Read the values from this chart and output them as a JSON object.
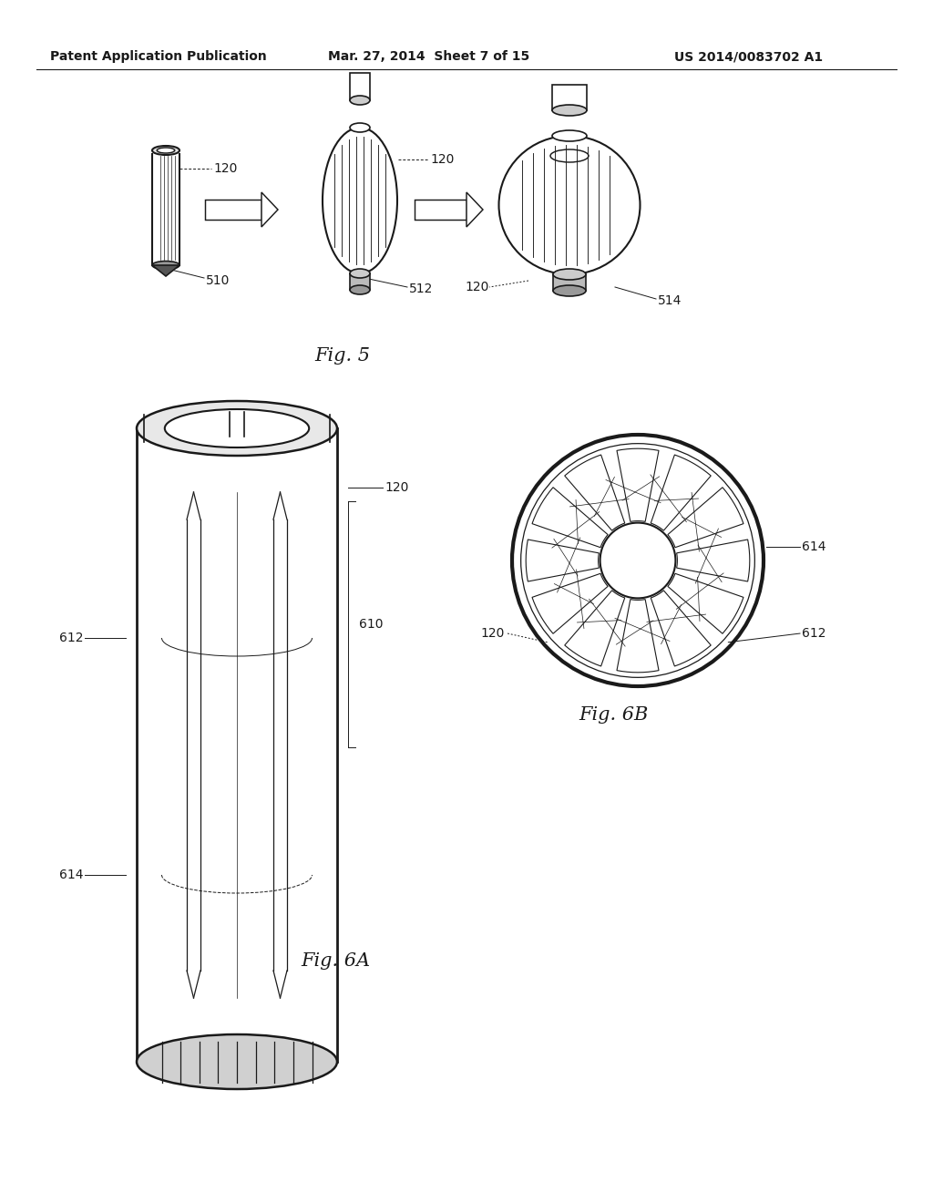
{
  "bg_color": "#ffffff",
  "header_left": "Patent Application Publication",
  "header_mid": "Mar. 27, 2014  Sheet 7 of 15",
  "header_right": "US 2014/0083702 A1",
  "fig5_caption": "Fig. 5",
  "fig6a_caption": "Fig. 6A",
  "fig6b_caption": "Fig. 6B",
  "line_color": "#1a1a1a",
  "header_fontsize": 10,
  "caption_fontsize": 15,
  "label_fontsize": 10
}
